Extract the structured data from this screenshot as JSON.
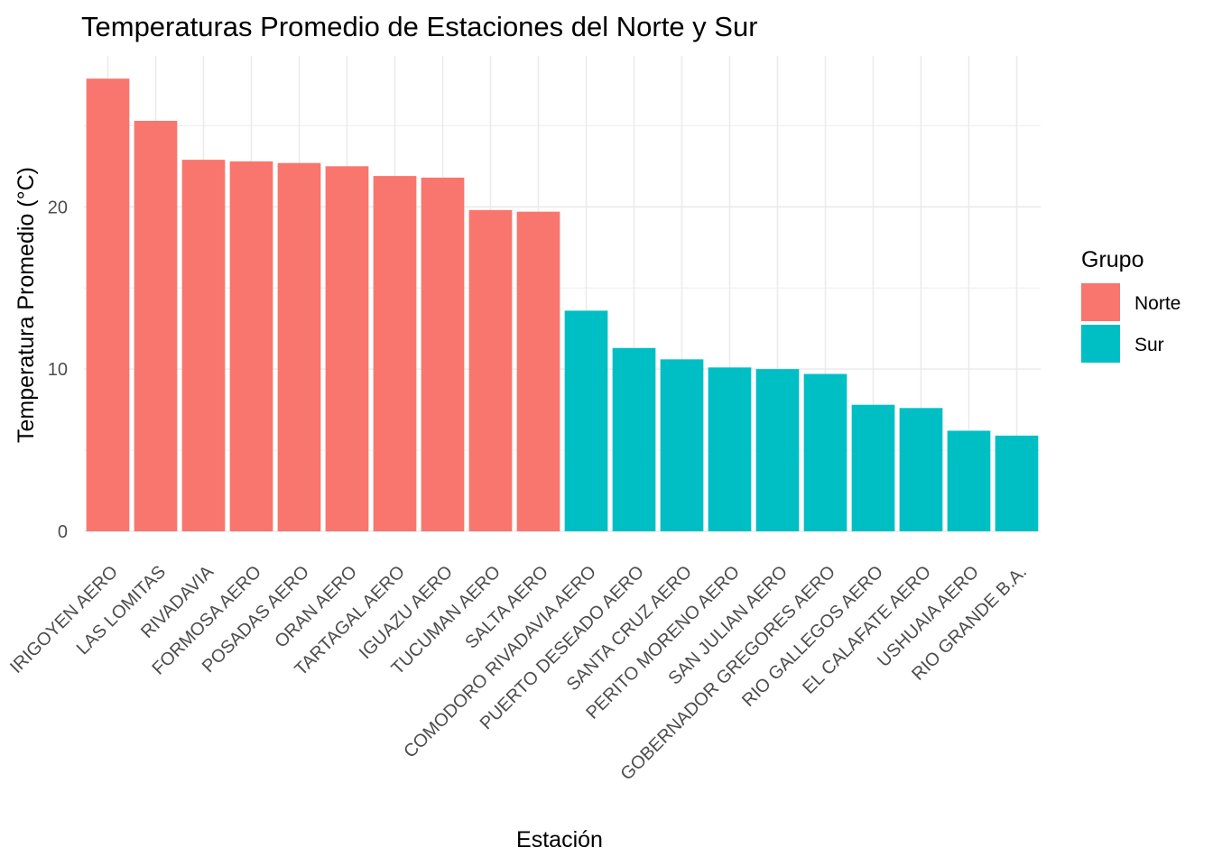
{
  "chart_data": {
    "type": "bar",
    "title": "Temperaturas Promedio de Estaciones del Norte y Sur",
    "xlabel": "Estación",
    "ylabel": "Temperatura Promedio (°C)",
    "ylim": [
      0,
      29.3
    ],
    "yticks": [
      0,
      10,
      20
    ],
    "grid": true,
    "legend_position": "right",
    "legend": {
      "title": "Grupo",
      "entries": [
        {
          "name": "Norte",
          "color": "#F8766D"
        },
        {
          "name": "Sur",
          "color": "#00BFC4"
        }
      ]
    },
    "categories": [
      "IRIGOYEN AERO",
      "LAS LOMITAS",
      "RIVADAVIA",
      "FORMOSA AERO",
      "POSADAS AERO",
      "ORAN AERO",
      "TARTAGAL AERO",
      "IGUAZU AERO",
      "TUCUMAN AERO",
      "SALTA AERO",
      "COMODORO RIVADAVIA AERO",
      "PUERTO DESEADO AERO",
      "SANTA CRUZ AERO",
      "PERITO MORENO AERO",
      "SAN JULIAN AERO",
      "GOBERNADOR GREGORES AERO",
      "RIO GALLEGOS AERO",
      "EL CALAFATE AERO",
      "USHUAIA AERO",
      "RIO GRANDE B.A."
    ],
    "values": [
      27.9,
      25.3,
      22.9,
      22.8,
      22.7,
      22.5,
      21.9,
      21.8,
      19.8,
      19.7,
      13.6,
      11.3,
      10.6,
      10.1,
      10.0,
      9.7,
      7.8,
      7.6,
      6.2,
      5.9
    ],
    "groups": [
      "Norte",
      "Norte",
      "Norte",
      "Norte",
      "Norte",
      "Norte",
      "Norte",
      "Norte",
      "Norte",
      "Norte",
      "Sur",
      "Sur",
      "Sur",
      "Sur",
      "Sur",
      "Sur",
      "Sur",
      "Sur",
      "Sur",
      "Sur"
    ]
  }
}
